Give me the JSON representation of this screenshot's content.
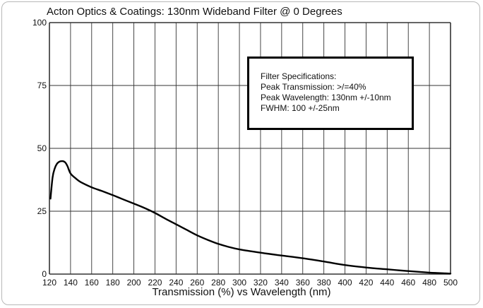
{
  "chart_data": {
    "type": "line",
    "title": "Acton Optics & Coatings: 130nm Wideband Filter @ 0 Degrees",
    "xlabel": "Transmission (%) vs Wavelength (nm)",
    "ylabel": "",
    "xlim": [
      120,
      500
    ],
    "ylim": [
      0,
      100
    ],
    "x_ticks": [
      "120",
      "140",
      "160",
      "180",
      "200",
      "220",
      "240",
      "260",
      "280",
      "300",
      "320",
      "340",
      "360",
      "380",
      "400",
      "420",
      "440",
      "460",
      "480",
      "500"
    ],
    "y_ticks": [
      "100",
      "75",
      "50",
      "25",
      "0"
    ],
    "grid": true,
    "line_color": "#000000",
    "series": [
      {
        "x": [
          121,
          123,
          125,
          127,
          129,
          131,
          133,
          135,
          137,
          140,
          145,
          150,
          160,
          170,
          180,
          190,
          200,
          210,
          220,
          230,
          240,
          250,
          260,
          270,
          280,
          290,
          300,
          320,
          340,
          360,
          380,
          400,
          420,
          440,
          460,
          480,
          495,
          500
        ],
        "y": [
          30,
          38.5,
          42,
          43.8,
          44.6,
          44.9,
          44.9,
          44.4,
          43,
          40,
          38,
          36.5,
          34.5,
          33,
          31.4,
          29.7,
          28,
          26.3,
          24.3,
          22,
          19.8,
          17.6,
          15.4,
          13.6,
          12,
          10.8,
          9.8,
          8.5,
          7.4,
          6.3,
          5,
          3.6,
          2.6,
          1.9,
          1.2,
          0.6,
          0.3,
          0.2
        ]
      }
    ]
  },
  "specs": {
    "heading": "Filter Specifications:",
    "peak_transmission": "Peak Transmission: >/=40%",
    "peak_wavelength": "Peak Wavelength: 130nm +/-10nm",
    "fwhm": "FWHM: 100 +/-25nm"
  }
}
